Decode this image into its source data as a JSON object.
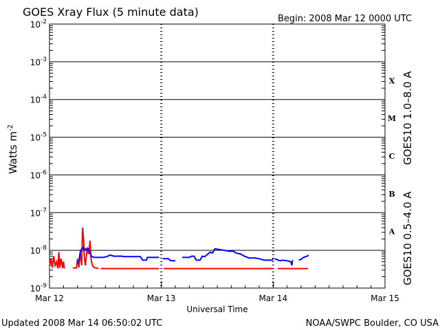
{
  "chart_data": {
    "type": "line",
    "title": "GOES Xray Flux (5 minute data)",
    "begin_label": "Begin:  2008 Mar 12 0000 UTC",
    "xlabel": "Universal Time",
    "ylabel_text": "Watts m",
    "ylabel_exponent": "-2",
    "footer_left": "Updated 2008 Mar 14 06:50:02 UTC",
    "footer_right": "NOAA/SWPC Boulder, CO USA",
    "y_scale": "log",
    "ylim": [
      1e-09,
      0.01
    ],
    "x_unit": "hours since 2008 Mar 12 00:00 UTC",
    "xlim": [
      0,
      72
    ],
    "grid": "horizontal lines at each decade; dashed vertical lines at day boundaries",
    "x_ticks": [
      {
        "label": "Mar 12",
        "x": 0
      },
      {
        "label": "Mar 13",
        "x": 24
      },
      {
        "label": "Mar 14",
        "x": 48
      },
      {
        "label": "Mar 15",
        "x": 72
      }
    ],
    "y_ticks": [
      {
        "base": "10",
        "exp": "-9",
        "value": 1e-09
      },
      {
        "base": "10",
        "exp": "-8",
        "value": 1e-08
      },
      {
        "base": "10",
        "exp": "-7",
        "value": 1e-07
      },
      {
        "base": "10",
        "exp": "-6",
        "value": 1e-06
      },
      {
        "base": "10",
        "exp": "-5",
        "value": 1e-05
      },
      {
        "base": "10",
        "exp": "-4",
        "value": 0.0001
      },
      {
        "base": "10",
        "exp": "-3",
        "value": 0.001
      },
      {
        "base": "10",
        "exp": "-2",
        "value": 0.01
      }
    ],
    "flare_classes": [
      {
        "label": "X",
        "value": 0.000316
      },
      {
        "label": "M",
        "value": 3.16e-05
      },
      {
        "label": "C",
        "value": 3.16e-06
      },
      {
        "label": "B",
        "value": 3.16e-07
      },
      {
        "label": "A",
        "value": 3.16e-08
      }
    ],
    "series": [
      {
        "name": "GOES10 1.0–8.0 A",
        "color": "#ff0000",
        "segments": [
          [
            [
              0.0,
              4e-09
            ],
            [
              0.3,
              6e-09
            ],
            [
              0.6,
              3.5e-09
            ],
            [
              0.9,
              7e-09
            ],
            [
              1.2,
              4e-09
            ],
            [
              1.5,
              5e-09
            ],
            [
              1.8,
              3.3e-09
            ],
            [
              2.0,
              9e-09
            ],
            [
              2.2,
              3.5e-09
            ],
            [
              2.5,
              6e-09
            ],
            [
              2.8,
              3.4e-09
            ],
            [
              3.0,
              5e-09
            ],
            [
              3.2,
              3.3e-09
            ]
          ],
          [
            [
              5.0,
              3.4e-09
            ],
            [
              5.8,
              3.4e-09
            ],
            [
              6.0,
              6e-09
            ],
            [
              6.3,
              3.5e-09
            ],
            [
              6.6,
              9e-09
            ],
            [
              6.9,
              4e-09
            ],
            [
              7.1,
              4e-08
            ],
            [
              7.3,
              2e-08
            ],
            [
              7.5,
              6e-09
            ],
            [
              7.7,
              4e-09
            ],
            [
              8.1,
              1.2e-08
            ],
            [
              8.4,
              8e-09
            ],
            [
              8.7,
              1.8e-08
            ],
            [
              8.9,
              6e-09
            ],
            [
              9.2,
              4e-09
            ],
            [
              9.6,
              3.5e-09
            ],
            [
              10.0,
              3.4e-09
            ],
            [
              10.5,
              3.3e-09
            ]
          ],
          [
            [
              11.0,
              3.3e-09
            ],
            [
              23.5,
              3.3e-09
            ]
          ],
          [
            [
              24.5,
              3.3e-09
            ],
            [
              48.0,
              3.3e-09
            ]
          ],
          [
            [
              49.0,
              3.3e-09
            ],
            [
              55.5,
              3.3e-09
            ]
          ]
        ]
      },
      {
        "name": "GOES10 0.5–4.0 A",
        "color": "#0000ff",
        "segments": [
          [
            [
              6.0,
              4.5e-09
            ],
            [
              6.3,
              5e-09
            ],
            [
              6.6,
              9e-09
            ],
            [
              6.9,
              1.1e-08
            ],
            [
              7.2,
              1.2e-08
            ],
            [
              7.4,
              1e-08
            ],
            [
              7.7,
              1.1e-08
            ],
            [
              8.0,
              1e-08
            ],
            [
              8.3,
              1.1e-08
            ],
            [
              8.6,
              9e-09
            ],
            [
              9.0,
              7e-09
            ],
            [
              9.5,
              6.5e-09
            ],
            [
              10.5,
              6.5e-09
            ],
            [
              11.5,
              6.5e-09
            ],
            [
              12.3,
              6.8e-09
            ],
            [
              13.0,
              7.5e-09
            ],
            [
              13.8,
              7e-09
            ],
            [
              14.5,
              7e-09
            ],
            [
              15.5,
              7e-09
            ],
            [
              16.0,
              6.8e-09
            ],
            [
              19.5,
              6.8e-09
            ],
            [
              20.0,
              5.5e-09
            ],
            [
              20.8,
              5.5e-09
            ],
            [
              21.0,
              6.5e-09
            ],
            [
              23.5,
              6.5e-09
            ]
          ],
          [
            [
              24.3,
              6e-09
            ],
            [
              25.5,
              6e-09
            ],
            [
              26.0,
              5.3e-09
            ],
            [
              27.0,
              5.3e-09
            ]
          ],
          [
            [
              28.5,
              6.5e-09
            ],
            [
              30.0,
              6.5e-09
            ],
            [
              30.5,
              7e-09
            ],
            [
              31.0,
              7e-09
            ],
            [
              31.5,
              5.5e-09
            ],
            [
              32.3,
              5.5e-09
            ],
            [
              32.8,
              7e-09
            ],
            [
              33.3,
              6.8e-09
            ],
            [
              34.0,
              8e-09
            ],
            [
              34.5,
              9e-09
            ],
            [
              35.0,
              8.5e-09
            ],
            [
              35.5,
              1.1e-08
            ],
            [
              36.5,
              1.05e-08
            ],
            [
              37.5,
              1e-08
            ],
            [
              38.5,
              9.5e-09
            ],
            [
              39.5,
              9.5e-09
            ],
            [
              40.0,
              8.5e-09
            ],
            [
              41.0,
              8e-09
            ],
            [
              41.8,
              7e-09
            ],
            [
              42.8,
              6.3e-09
            ],
            [
              44.0,
              6.3e-09
            ],
            [
              45.0,
              6e-09
            ],
            [
              46.0,
              5.5e-09
            ],
            [
              47.8,
              5.5e-09
            ],
            [
              48.0,
              6e-09
            ]
          ],
          [
            [
              48.3,
              6e-09
            ],
            [
              49.5,
              5.3e-09
            ],
            [
              50.0,
              5.5e-09
            ],
            [
              51.0,
              5.3e-09
            ],
            [
              51.8,
              5e-09
            ],
            [
              52.0,
              4e-09
            ],
            [
              52.2,
              5.5e-09
            ]
          ],
          [
            [
              53.5,
              5.5e-09
            ],
            [
              54.0,
              5.8e-09
            ],
            [
              54.5,
              6.5e-09
            ],
            [
              55.3,
              7e-09
            ],
            [
              55.6,
              7.5e-09
            ]
          ]
        ]
      }
    ]
  }
}
